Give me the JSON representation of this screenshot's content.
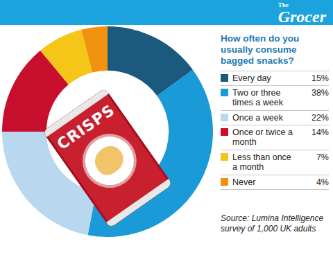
{
  "chart_data": {
    "type": "pie",
    "title": "How often do you usually consume bagged snacks?",
    "categories": [
      "Every day",
      "Two or three times a week",
      "Once a week",
      "Once or twice a month",
      "Less than once a month",
      "Never"
    ],
    "values": [
      15,
      38,
      22,
      14,
      7,
      4
    ],
    "value_labels": [
      "15%",
      "38%",
      "22%",
      "14%",
      "7%",
      "4%"
    ],
    "colors": [
      "#1b5a7e",
      "#1a9ad6",
      "#b9d7ef",
      "#c8102e",
      "#f5c518",
      "#f0920f"
    ],
    "legend": "right",
    "source": "Source: Lumina Intelligence survey of 1,000 UK adults",
    "logo": "The Grocer",
    "illustration_text": "CRISPS"
  }
}
